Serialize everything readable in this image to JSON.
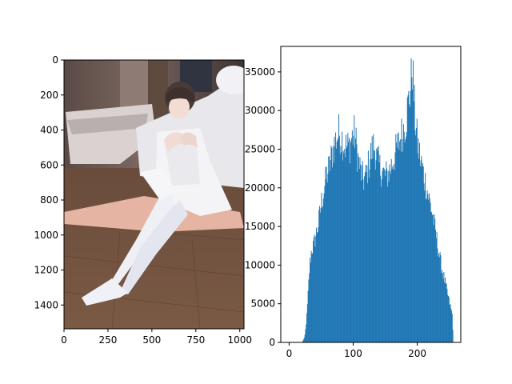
{
  "figure": {
    "background": "#ffffff",
    "bar_color": "#1f77b4"
  },
  "chart_data": [
    {
      "type": "image",
      "title": "",
      "xlabel": "",
      "ylabel": "",
      "xlim": [
        0,
        1024
      ],
      "ylim": [
        1536,
        0
      ],
      "x_ticks": [
        0,
        250,
        500,
        750,
        1000
      ],
      "y_ticks": [
        0,
        200,
        400,
        600,
        800,
        1000,
        1200,
        1400
      ],
      "content": "photo"
    },
    {
      "type": "bar",
      "title": "",
      "xlabel": "",
      "ylabel": "",
      "xlim": [
        -13,
        268
      ],
      "ylim": [
        0,
        38300
      ],
      "x_ticks": [
        0,
        100,
        200
      ],
      "y_ticks": [
        0,
        5000,
        10000,
        15000,
        20000,
        25000,
        30000,
        35000
      ],
      "histogram": {
        "bin_width": 1,
        "x_start": 0,
        "x_end": 256,
        "control_points": [
          [
            0,
            0
          ],
          [
            20,
            0
          ],
          [
            24,
            600
          ],
          [
            26,
            2000
          ],
          [
            28,
            4000
          ],
          [
            30,
            7000
          ],
          [
            32,
            10000
          ],
          [
            35,
            12000
          ],
          [
            38,
            12500
          ],
          [
            42,
            14000
          ],
          [
            46,
            15500
          ],
          [
            50,
            18000
          ],
          [
            54,
            19500
          ],
          [
            58,
            21500
          ],
          [
            62,
            22500
          ],
          [
            66,
            24000
          ],
          [
            70,
            25500
          ],
          [
            74,
            26500
          ],
          [
            78,
            27200
          ],
          [
            82,
            26500
          ],
          [
            86,
            25500
          ],
          [
            90,
            25200
          ],
          [
            94,
            25500
          ],
          [
            98,
            26500
          ],
          [
            102,
            27000
          ],
          [
            104,
            26000
          ],
          [
            108,
            23500
          ],
          [
            112,
            22000
          ],
          [
            116,
            21000
          ],
          [
            120,
            21500
          ],
          [
            124,
            23000
          ],
          [
            128,
            24500
          ],
          [
            132,
            25500
          ],
          [
            134,
            25000
          ],
          [
            138,
            23500
          ],
          [
            142,
            22500
          ],
          [
            146,
            22000
          ],
          [
            150,
            21500
          ],
          [
            154,
            21800
          ],
          [
            158,
            22500
          ],
          [
            162,
            23500
          ],
          [
            166,
            24500
          ],
          [
            170,
            25500
          ],
          [
            174,
            26500
          ],
          [
            178,
            27500
          ],
          [
            182,
            28500
          ],
          [
            186,
            31000
          ],
          [
            190,
            33000
          ],
          [
            192,
            36500
          ],
          [
            194,
            33000
          ],
          [
            196,
            29500
          ],
          [
            200,
            26000
          ],
          [
            204,
            24000
          ],
          [
            208,
            22500
          ],
          [
            212,
            21000
          ],
          [
            216,
            19500
          ],
          [
            220,
            18000
          ],
          [
            224,
            16500
          ],
          [
            228,
            14500
          ],
          [
            232,
            12500
          ],
          [
            236,
            10500
          ],
          [
            240,
            9000
          ],
          [
            244,
            7500
          ],
          [
            248,
            6000
          ],
          [
            252,
            4500
          ],
          [
            255,
            3500
          ],
          [
            256,
            0
          ]
        ]
      }
    }
  ]
}
